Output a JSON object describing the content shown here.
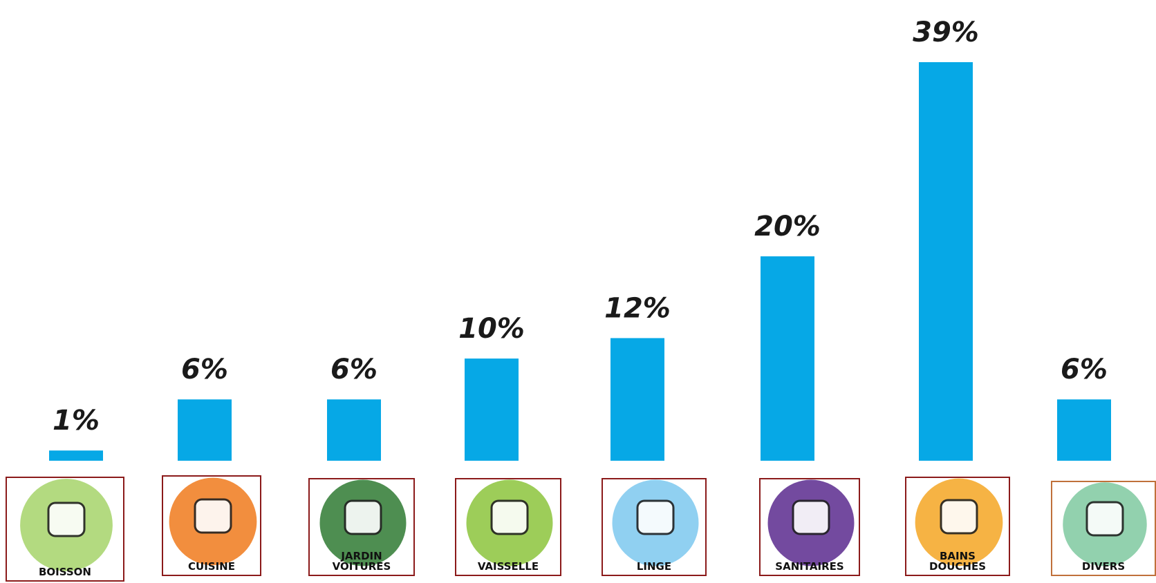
{
  "chart_data": {
    "type": "bar",
    "categories": [
      "BOISSON",
      "CUISINE",
      "JARDIN\nVOITURES",
      "VAISSELLE",
      "LINGE",
      "SANITAIRES",
      "BAINS\nDOUCHES",
      "DIVERS"
    ],
    "values": [
      1,
      6,
      6,
      10,
      12,
      20,
      39,
      6
    ],
    "value_labels": [
      "1%",
      "6%",
      "6%",
      "10%",
      "12%",
      "20%",
      "39%",
      "6%"
    ],
    "bar_color": "#06a8e6",
    "ylim": [
      0,
      40
    ],
    "grid": false,
    "legend": "none"
  },
  "icons": [
    {
      "name": "drink-jug-icon",
      "bg": "#a6d36a"
    },
    {
      "name": "cooking-pot-icon",
      "bg": "#f07a1c"
    },
    {
      "name": "watering-can-icon",
      "bg": "#2f7a33"
    },
    {
      "name": "dishes-icon",
      "bg": "#8cc43c"
    },
    {
      "name": "washing-machine-icon",
      "bg": "#7cc8ef"
    },
    {
      "name": "toilet-icon",
      "bg": "#5b2a8e"
    },
    {
      "name": "bathtub-icon",
      "bg": "#f5a623"
    },
    {
      "name": "fishbowl-icon",
      "bg": "#7fc9a0"
    }
  ]
}
